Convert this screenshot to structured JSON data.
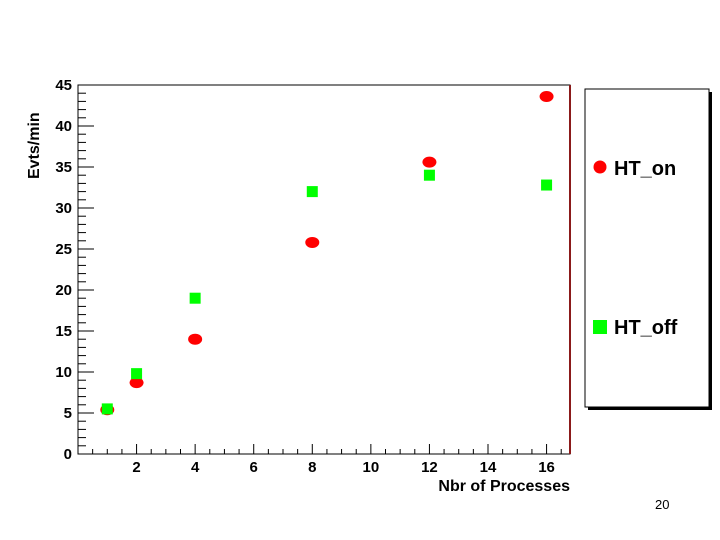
{
  "chart_data": {
    "type": "scatter",
    "xlabel": "Nbr of Processes",
    "ylabel": "Evts/min",
    "xlim": [
      0,
      16.8
    ],
    "ylim": [
      0,
      45
    ],
    "x_ticks": [
      2,
      4,
      6,
      8,
      10,
      12,
      14,
      16
    ],
    "y_ticks": [
      0,
      5,
      10,
      15,
      20,
      25,
      30,
      35,
      40,
      45
    ],
    "grid": false,
    "legend_position": "right (outside plot)",
    "series": [
      {
        "name": "HT_on",
        "marker": "circle",
        "color": "#ff0000",
        "points": [
          {
            "x": 1,
            "y": 5.4
          },
          {
            "x": 2,
            "y": 8.7
          },
          {
            "x": 4,
            "y": 14.0
          },
          {
            "x": 8,
            "y": 25.8
          },
          {
            "x": 12,
            "y": 35.6
          },
          {
            "x": 16,
            "y": 43.6
          }
        ]
      },
      {
        "name": "HT_off",
        "marker": "square",
        "color": "#00ff00",
        "points": [
          {
            "x": 1,
            "y": 5.5
          },
          {
            "x": 2,
            "y": 9.8
          },
          {
            "x": 4,
            "y": 19.0
          },
          {
            "x": 8,
            "y": 32.0
          },
          {
            "x": 12,
            "y": 34.0
          },
          {
            "x": 16,
            "y": 32.8
          }
        ]
      }
    ]
  },
  "slide": {
    "page_number": "20"
  }
}
